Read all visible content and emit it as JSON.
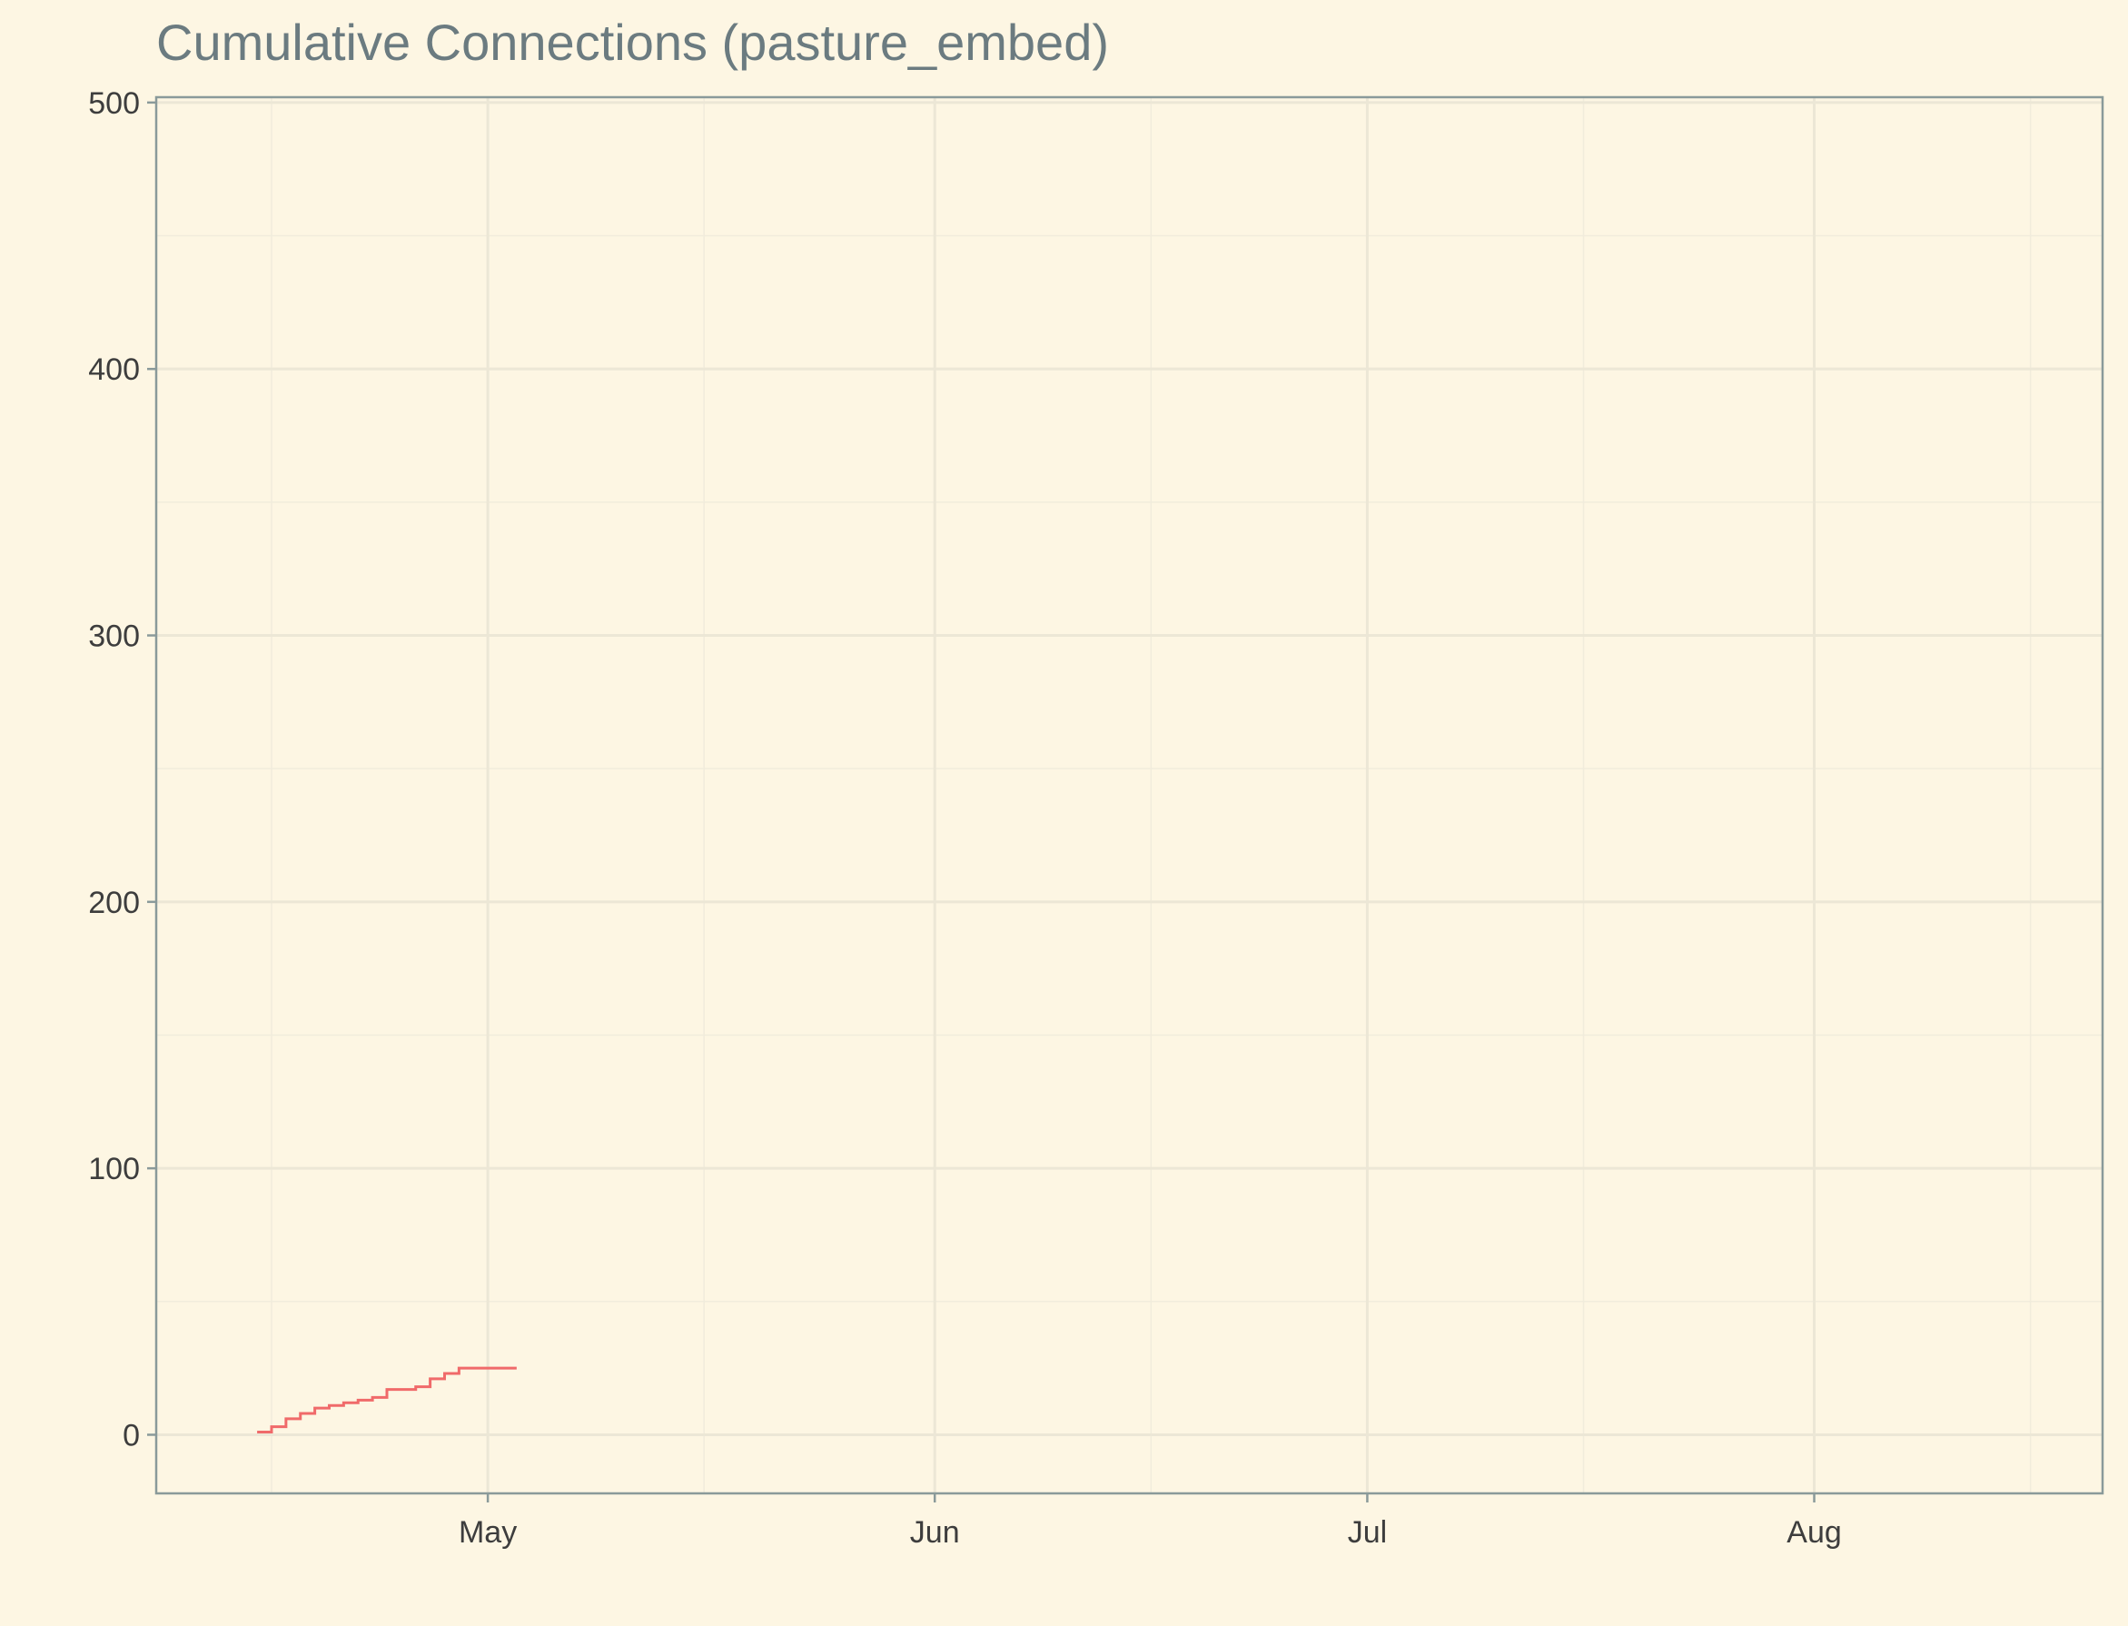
{
  "chart_data": {
    "type": "line",
    "title": "Cumulative Connections (pasture_embed)",
    "xlabel": "",
    "ylabel": "",
    "x_type": "date",
    "xlim": [
      "2023-04-08",
      "2023-08-21"
    ],
    "ylim": [
      -22,
      502
    ],
    "x_ticks": [
      {
        "date": "2023-05-01",
        "label": "May"
      },
      {
        "date": "2023-06-01",
        "label": "Jun"
      },
      {
        "date": "2023-07-01",
        "label": "Jul"
      },
      {
        "date": "2023-08-01",
        "label": "Aug"
      }
    ],
    "x_minor_ticks": [
      "2023-04-16",
      "2023-05-16",
      "2023-06-16",
      "2023-07-16",
      "2023-08-16"
    ],
    "y_ticks": [
      {
        "value": 0,
        "label": "0"
      },
      {
        "value": 100,
        "label": "100"
      },
      {
        "value": 200,
        "label": "200"
      },
      {
        "value": 300,
        "label": "300"
      },
      {
        "value": 400,
        "label": "400"
      },
      {
        "value": 500,
        "label": "500"
      }
    ],
    "y_minor_ticks": [
      50,
      150,
      250,
      350,
      450
    ],
    "grid": true,
    "legend": "none",
    "series": [
      {
        "color": "#f06a6a",
        "step": true,
        "points": [
          [
            "2023-04-15",
            1
          ],
          [
            "2023-04-16",
            3
          ],
          [
            "2023-04-17",
            6
          ],
          [
            "2023-04-18",
            8
          ],
          [
            "2023-04-19",
            10
          ],
          [
            "2023-04-20",
            11
          ],
          [
            "2023-04-21",
            12
          ],
          [
            "2023-04-22",
            13
          ],
          [
            "2023-04-23",
            14
          ],
          [
            "2023-04-24",
            17
          ],
          [
            "2023-04-26",
            18
          ],
          [
            "2023-04-27",
            21
          ],
          [
            "2023-04-28",
            23
          ],
          [
            "2023-04-29",
            25
          ],
          [
            "2023-04-30",
            25
          ],
          [
            "2023-04-27",
            21
          ],
          [
            "2023-05-03",
            25
          ],
          [
            "2023-04-28",
            22
          ]
        ]
      }
    ]
  }
}
